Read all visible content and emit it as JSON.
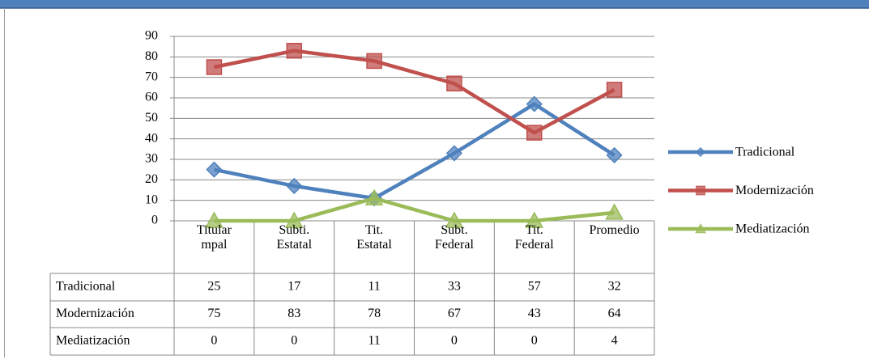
{
  "chart_data": {
    "type": "line",
    "categories": [
      "Titular mpal",
      "Subti. Estatal",
      "Tit. Estatal",
      "Subt. Federal",
      "Tit. Federal",
      "Promedio"
    ],
    "series": [
      {
        "name": "Tradicional",
        "color": "#4f81bd",
        "marker": "diamond",
        "values": [
          25,
          17,
          11,
          33,
          57,
          32
        ]
      },
      {
        "name": "Modernización",
        "color": "#c0504d",
        "marker": "square",
        "values": [
          75,
          83,
          78,
          67,
          43,
          64
        ]
      },
      {
        "name": "Mediatización",
        "color": "#9bbb59",
        "marker": "triangle",
        "values": [
          0,
          0,
          11,
          0,
          0,
          4
        ]
      }
    ],
    "ylim": [
      0,
      90
    ],
    "yticks": [
      0,
      10,
      20,
      30,
      40,
      50,
      60,
      70,
      80,
      90
    ],
    "grid": true,
    "legend": "right",
    "data_table": true
  }
}
